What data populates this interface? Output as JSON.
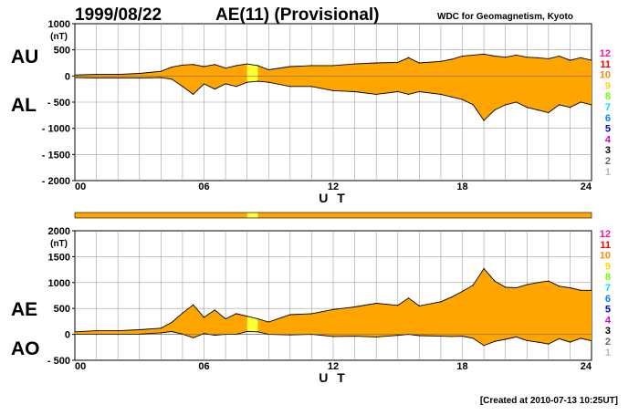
{
  "header": {
    "date": "1999/08/22",
    "title": "AE(11) (Provisional)",
    "source": "WDC for Geomagnetism, Kyoto"
  },
  "footer": {
    "created": "[Created at 2010-07-13 10:25UT]"
  },
  "colors": {
    "fill": "#ffa500",
    "highlight": "#ffff33",
    "grid": "#a0a0a0",
    "line": "#000000"
  },
  "station_legend": [
    {
      "label": "12",
      "color": "#ff1493"
    },
    {
      "label": "11",
      "color": "#ff0000"
    },
    {
      "label": "10",
      "color": "#ff8c00"
    },
    {
      "label": "9",
      "color": "#ffd700"
    },
    {
      "label": "8",
      "color": "#66ff00"
    },
    {
      "label": "7",
      "color": "#00e5e5"
    },
    {
      "label": "6",
      "color": "#0080ff"
    },
    {
      "label": "5",
      "color": "#0000cd"
    },
    {
      "label": "4",
      "color": "#cc00cc"
    },
    {
      "label": "3",
      "color": "#000000"
    },
    {
      "label": "2",
      "color": "#666666"
    },
    {
      "label": "1",
      "color": "#bbbbbb"
    }
  ],
  "chart_data": [
    {
      "type": "area",
      "name": "AU/AL",
      "upper_label": "AU",
      "lower_label": "AL",
      "unit_label": "(nT)",
      "ylim": [
        -2000,
        1000
      ],
      "yticks": [
        -2000,
        -1500,
        -1000,
        -500,
        0,
        500,
        1000
      ],
      "ytick_labels": [
        "- 2000",
        "- 1500",
        "- 1000",
        "- 500",
        "0",
        "500",
        "1000"
      ],
      "xlim": [
        0,
        24
      ],
      "xticks": [
        0,
        6,
        12,
        18,
        24
      ],
      "xtick_labels": [
        "00",
        "06",
        "12",
        "18",
        "24"
      ],
      "xlabel": "U T",
      "highlight_hours": [
        8,
        8.5
      ],
      "x": [
        0,
        1,
        2,
        3,
        4,
        4.5,
        5,
        5.5,
        6,
        6.5,
        7,
        7.5,
        8,
        8.5,
        9,
        10,
        11,
        12,
        13,
        14,
        15,
        15.5,
        16,
        17,
        17.5,
        18,
        18.5,
        19,
        19.5,
        20,
        20.5,
        21,
        21.5,
        22,
        22.5,
        23,
        23.5,
        24
      ],
      "upper": [
        20,
        30,
        30,
        50,
        90,
        170,
        210,
        220,
        180,
        220,
        150,
        200,
        230,
        200,
        120,
        180,
        200,
        200,
        230,
        250,
        260,
        350,
        250,
        280,
        320,
        380,
        400,
        420,
        380,
        360,
        400,
        360,
        350,
        330,
        380,
        300,
        350,
        300
      ],
      "lower": [
        -30,
        -40,
        -40,
        -40,
        -30,
        -60,
        -200,
        -350,
        -150,
        -250,
        -150,
        -200,
        -120,
        -100,
        -120,
        -200,
        -200,
        -280,
        -300,
        -350,
        -300,
        -350,
        -300,
        -350,
        -400,
        -450,
        -550,
        -850,
        -650,
        -550,
        -500,
        -600,
        -650,
        -700,
        -550,
        -600,
        -500,
        -550
      ]
    },
    {
      "type": "area",
      "name": "AE/AO",
      "upper_label": "AE",
      "lower_label": "AO",
      "unit_label": "(nT)",
      "ylim": [
        -500,
        2000
      ],
      "yticks": [
        -500,
        0,
        500,
        1000,
        1500,
        2000
      ],
      "ytick_labels": [
        "- 500",
        "0",
        "500",
        "1000",
        "1500",
        "2000"
      ],
      "xlim": [
        0,
        24
      ],
      "xticks": [
        0,
        6,
        12,
        18,
        24
      ],
      "xtick_labels": [
        "00",
        "06",
        "12",
        "18",
        "24"
      ],
      "xlabel": "U T",
      "highlight_hours": [
        8,
        8.5
      ],
      "x": [
        0,
        1,
        2,
        3,
        4,
        4.5,
        5,
        5.5,
        6,
        6.5,
        7,
        7.5,
        8,
        8.5,
        9,
        10,
        11,
        12,
        13,
        14,
        15,
        15.5,
        16,
        17,
        17.5,
        18,
        18.5,
        19,
        19.5,
        20,
        20.5,
        21,
        21.5,
        22,
        22.5,
        23,
        23.5,
        24
      ],
      "upper": [
        50,
        70,
        70,
        90,
        120,
        230,
        410,
        570,
        330,
        470,
        300,
        400,
        350,
        300,
        240,
        380,
        400,
        480,
        530,
        600,
        560,
        700,
        550,
        630,
        720,
        830,
        950,
        1270,
        1030,
        910,
        900,
        960,
        1000,
        1030,
        930,
        900,
        850,
        850
      ],
      "lower": [
        0,
        0,
        0,
        5,
        30,
        55,
        5,
        -65,
        15,
        -15,
        0,
        0,
        55,
        50,
        0,
        -10,
        0,
        -40,
        -35,
        -50,
        -20,
        0,
        -25,
        -35,
        -40,
        -35,
        -75,
        -215,
        -135,
        -95,
        -50,
        -120,
        -150,
        -185,
        -85,
        -150,
        -75,
        -125
      ]
    }
  ]
}
